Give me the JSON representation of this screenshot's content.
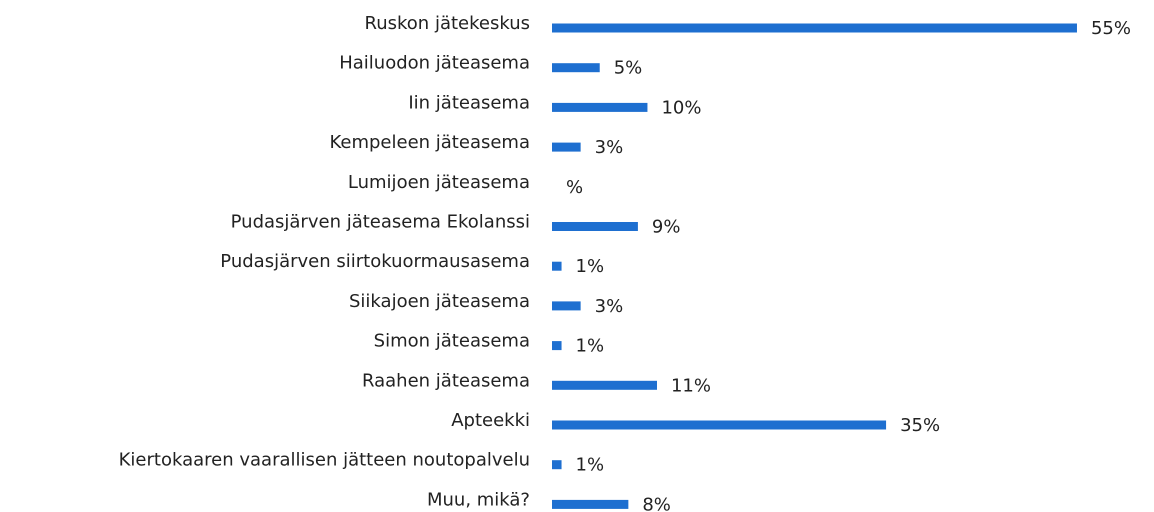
{
  "chart_data": {
    "type": "bar",
    "orientation": "horizontal",
    "color": "#1e6fd0",
    "categories": [
      "Ruskon jätekeskus",
      "Hailuodon jäteasema",
      "Iin jäteasema",
      "Kempeleen jäteasema",
      "Lumijoen jäteasema",
      "Pudasjärven jäteasema Ekolanssi",
      "Pudasjärven siirtokuormausasema",
      "Siikajoen jäteasema",
      "Simon jäteasema",
      "Raahen jäteasema",
      "Apteekki",
      "Kiertokaaren vaarallisen jätteen noutopalvelu",
      "Muu, mikä?"
    ],
    "values": [
      55,
      5,
      10,
      3,
      0,
      9,
      1,
      3,
      1,
      11,
      35,
      1,
      8
    ],
    "value_labels": [
      "55%",
      "5%",
      "10%",
      "3%",
      "%",
      "9%",
      "1%",
      "3%",
      "1%",
      "11%",
      "35%",
      "1%",
      "8%"
    ]
  }
}
